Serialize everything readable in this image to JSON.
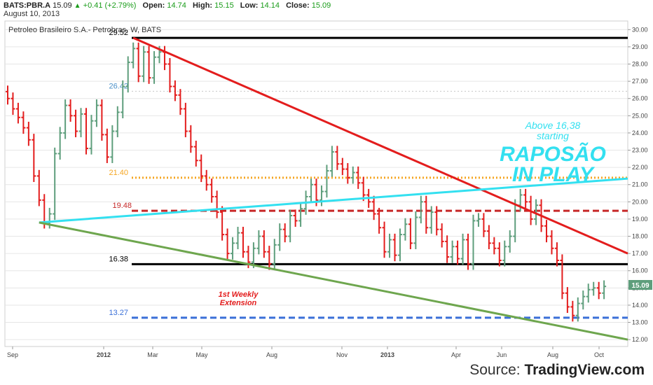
{
  "header": {
    "symbol": "BATS:PBR.A",
    "last": "15.09",
    "change": "+0.41 (+2.79%)",
    "open_label": "Open:",
    "open": "14.74",
    "high_label": "High:",
    "high": "15.15",
    "low_label": "Low:",
    "low": "14.14",
    "close_label": "Close:",
    "close": "15.09",
    "date": "August 10, 2013"
  },
  "source": {
    "prefix": "Source: ",
    "brand": "TradingView.com"
  },
  "chart_data": {
    "type": "ohlc",
    "title": "Petroleo Brasileiro S.A.- Petrobras, W, BATS",
    "ylim": [
      11.6,
      30.5
    ],
    "y_ticks": [
      "30.00",
      "29.00",
      "28.00",
      "27.00",
      "26.00",
      "25.00",
      "24.00",
      "23.00",
      "22.00",
      "21.00",
      "20.00",
      "19.00",
      "18.00",
      "17.00",
      "16.00",
      "15.00",
      "14.00",
      "13.00",
      "12.00"
    ],
    "x_ticks": [
      "Sep",
      "2012",
      "Mar",
      "May",
      "Aug",
      "Nov",
      "2013",
      "Apr",
      "Jun",
      "Aug",
      "Oct"
    ],
    "last_price_tag": "15.09",
    "colors": {
      "up": "#5e9e7c",
      "down": "#e31d1d",
      "grid": "#e6e6e6"
    },
    "series_close": [
      26.0,
      25.4,
      24.9,
      24.3,
      23.6,
      21.5,
      20.1,
      18.8,
      19.3,
      22.8,
      24.0,
      25.6,
      25.0,
      24.1,
      25.1,
      23.1,
      24.7,
      25.6,
      23.9,
      22.6,
      24.1,
      25.2,
      26.7,
      28.1,
      28.9,
      27.3,
      28.7,
      27.2,
      28.4,
      28.7,
      28.0,
      26.7,
      26.2,
      25.4,
      24.1,
      23.2,
      22.4,
      21.5,
      21.0,
      20.3,
      19.4,
      18.1,
      17.0,
      17.6,
      18.2,
      17.1,
      16.5,
      17.3,
      18.0,
      17.1,
      16.4,
      17.5,
      18.4,
      18.0,
      19.2,
      18.9,
      19.6,
      20.3,
      21.0,
      20.1,
      20.6,
      21.8,
      22.9,
      22.2,
      21.9,
      21.4,
      21.7,
      21.1,
      20.4,
      20.0,
      19.3,
      18.5,
      17.1,
      17.8,
      16.9,
      18.1,
      18.7,
      17.6,
      19.1,
      20.0,
      18.5,
      19.4,
      18.4,
      17.7,
      16.8,
      17.4,
      16.7,
      17.8,
      16.4,
      18.9,
      19.0,
      18.3,
      17.6,
      17.3,
      16.6,
      17.4,
      18.0,
      19.8,
      20.4,
      20.0,
      19.0,
      19.8,
      18.6,
      18.0,
      17.3,
      16.6,
      14.7,
      13.9,
      13.4,
      14.1,
      14.5,
      14.9,
      15.0,
      14.7,
      15.09
    ],
    "levels": [
      {
        "label": "29.52",
        "value": 29.52,
        "color": "#000000",
        "style": "solid"
      },
      {
        "label": "26.42",
        "value": 26.42,
        "color": "#c8c8c8",
        "style": "dotted"
      },
      {
        "label": "21.40",
        "value": 21.4,
        "color": "#f5a623",
        "style": "dotted"
      },
      {
        "label": "19.48",
        "value": 19.48,
        "color": "#c62828",
        "style": "dashed"
      },
      {
        "label": "16.38",
        "value": 16.38,
        "color": "#000000",
        "style": "solid"
      },
      {
        "label": "13.27",
        "value": 13.27,
        "color": "#3a6fd8",
        "style": "dashed"
      }
    ],
    "trendlines": [
      {
        "name": "red",
        "color": "#e31d1d",
        "from": [
          24,
          29.52
        ],
        "to": [
          122,
          17.0
        ]
      },
      {
        "name": "cyan",
        "color": "#33e0f0",
        "from": [
          6,
          18.8
        ],
        "to": [
          122,
          21.35
        ]
      },
      {
        "name": "green",
        "color": "#6ea64e",
        "from": [
          6,
          18.8
        ],
        "to": [
          122,
          12.0
        ]
      }
    ],
    "annotations": {
      "above": "Above 16,38",
      "starting": "starting",
      "raposao": "RAPOSÃO",
      "in_play": "IN PLAY",
      "weekly1": "1st Weekly",
      "weekly2": "Extension"
    }
  }
}
